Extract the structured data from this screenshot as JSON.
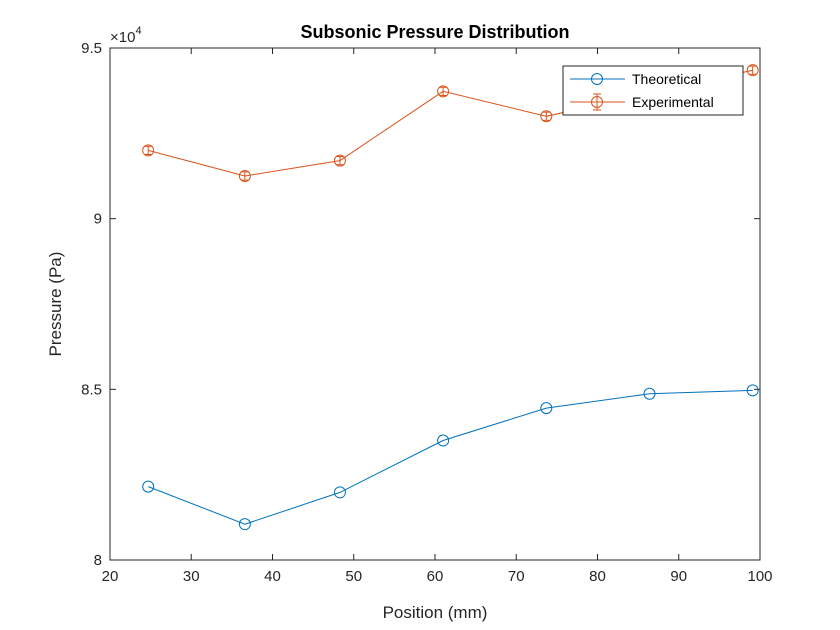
{
  "chart_data": {
    "type": "line",
    "title": "Subsonic Pressure Distribution",
    "xlabel": "Position (mm)",
    "ylabel": "Pressure (Pa)",
    "xlim": [
      20,
      100
    ],
    "ylim": [
      80000,
      95000
    ],
    "x_ticks": [
      20,
      30,
      40,
      50,
      60,
      70,
      80,
      90,
      100
    ],
    "y_ticks": [
      80000,
      85000,
      90000,
      95000
    ],
    "y_tick_labels": [
      "8",
      "8.5",
      "9",
      "9.5"
    ],
    "y_exponent_label": "×10",
    "y_exponent_power": "4",
    "grid": false,
    "legend_position": "top-right",
    "series": [
      {
        "name": "Theoretical",
        "color": "#0072BD",
        "marker": "circle",
        "error_bars": false,
        "x": [
          24.7,
          36.6,
          48.3,
          61.0,
          73.7,
          86.4,
          99.1
        ],
        "y": [
          82150,
          81050,
          81980,
          83500,
          84450,
          84870,
          84970
        ]
      },
      {
        "name": "Experimental",
        "color": "#D95319",
        "marker": "circle",
        "error_bars": true,
        "error": 120,
        "x": [
          24.7,
          36.6,
          48.3,
          61.0,
          73.7,
          99.1
        ],
        "y": [
          92000,
          91250,
          91700,
          93730,
          93000,
          94350
        ]
      }
    ]
  }
}
